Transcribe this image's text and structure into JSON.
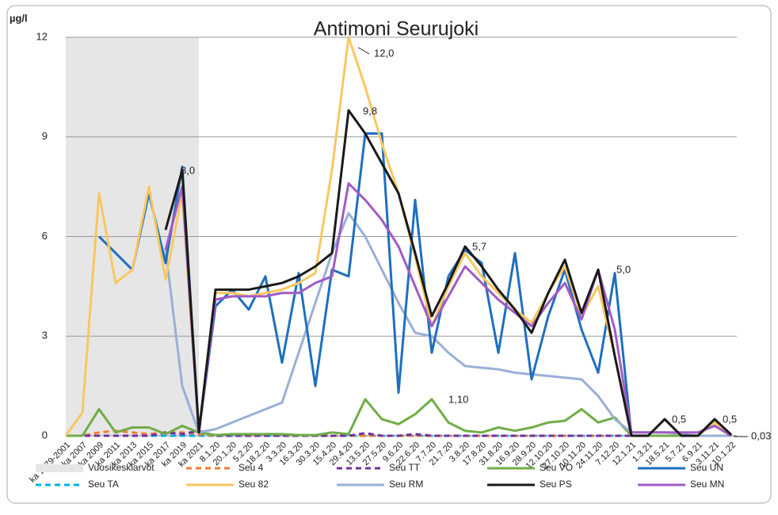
{
  "chart_data": {
    "type": "line",
    "title": "Antimoni Seurujoki",
    "y_label": "µg/l",
    "ylim": [
      0,
      12
    ],
    "yticks": [
      0,
      3,
      6,
      9,
      12
    ],
    "grid": true,
    "categories": [
      "ka 1979-2001",
      "ka 2007",
      "ka 2009",
      "ka 2011",
      "ka 2013",
      "ka 2015",
      "ka 2017",
      "ka 2019",
      "ka 2021",
      "8.1.20",
      "20.1.20",
      "5.2.20",
      "18.2.20",
      "3.3.20",
      "16.3.20",
      "30.3.20",
      "15.4.20",
      "29.4.20",
      "13.5.20",
      "27.5.20",
      "9.6.20",
      "22.6.20",
      "7.7.20",
      "21.7.20",
      "3.8.20",
      "17.8.20",
      "31.8.20",
      "16.9.20",
      "28.9.20",
      "12.10.20",
      "27.10.20",
      "10.11.20",
      "24.11.20",
      "7.12.20",
      "12.1.21",
      "1.3.21",
      "18.5.21",
      "5.7.21",
      "6.9.21",
      "3.11.21",
      "10.1.22"
    ],
    "series": [
      {
        "name": "Vuosikeskiarvot",
        "color": "#e6e6e6",
        "style": "area",
        "values": [
          12,
          12,
          12,
          12,
          12,
          12,
          12,
          12,
          12,
          null,
          null,
          null,
          null,
          null,
          null,
          null,
          null,
          null,
          null,
          null,
          null,
          null,
          null,
          null,
          null,
          null,
          null,
          null,
          null,
          null,
          null,
          null,
          null,
          null,
          null,
          null,
          null,
          null,
          null,
          null,
          null
        ]
      },
      {
        "name": "Seu 4",
        "color": "#ed7d31",
        "style": "dashed",
        "values": [
          0,
          0,
          0.1,
          0.15,
          0.1,
          0.05,
          0.1,
          0.1,
          0.05,
          0,
          0,
          0,
          0,
          0,
          0,
          0,
          0,
          0,
          0,
          0,
          0,
          0,
          0,
          0,
          0,
          0,
          0,
          0,
          0,
          0,
          0,
          0,
          0,
          0,
          0,
          0,
          0,
          0,
          0,
          0,
          0
        ]
      },
      {
        "name": "Seu TT",
        "color": "#7030a0",
        "style": "dashed",
        "values": [
          0,
          0,
          0,
          0,
          0,
          0,
          0.1,
          0.05,
          0.15,
          0,
          0,
          0,
          0,
          0,
          0,
          0,
          0,
          0,
          0.08,
          0,
          0,
          0.05,
          0,
          0,
          0,
          0,
          0,
          0,
          0,
          0,
          0,
          0,
          0,
          0,
          0,
          0,
          0,
          0,
          0,
          0,
          0
        ]
      },
      {
        "name": "Seu VO",
        "color": "#70ad47",
        "style": "solid",
        "values": [
          0,
          0,
          0.8,
          0.1,
          0.25,
          0.25,
          0.05,
          0.3,
          0.1,
          0.02,
          0.05,
          0.05,
          0.05,
          0.05,
          0.02,
          0.02,
          0.1,
          0.05,
          1.1,
          0.5,
          0.35,
          0.65,
          1.1,
          0.4,
          0.15,
          0.1,
          0.25,
          0.15,
          0.25,
          0.4,
          0.45,
          0.8,
          0.4,
          0.55,
          0,
          0,
          0,
          0,
          0,
          0,
          0
        ]
      },
      {
        "name": "Seu UN",
        "color": "#1f6fbf",
        "style": "solid",
        "values": [
          null,
          null,
          6.0,
          5.5,
          5,
          7.3,
          5.2,
          8.1,
          0.1,
          3.9,
          4.4,
          3.8,
          4.8,
          2.2,
          4.9,
          1.5,
          5.0,
          4.8,
          9.1,
          9.1,
          1.3,
          7.1,
          2.5,
          4.8,
          5.6,
          5.2,
          2.5,
          5.5,
          1.7,
          3.6,
          5,
          3.2,
          1.9,
          4.9,
          0,
          0,
          0.5,
          0,
          0,
          0.5,
          0
        ]
      },
      {
        "name": "Seu TA",
        "color": "#00b0f0",
        "style": "dashed",
        "values": [
          0,
          0,
          0,
          0,
          0,
          0,
          0,
          0,
          0,
          0,
          0,
          0,
          0,
          0,
          0,
          0,
          0,
          0,
          0,
          0,
          0,
          0,
          0,
          0,
          0,
          0,
          0,
          0,
          0,
          0,
          0,
          0,
          0,
          0,
          0,
          0,
          0,
          0,
          0,
          0,
          0
        ]
      },
      {
        "name": "Seu 82",
        "color": "#f9c760",
        "style": "solid",
        "values": [
          0,
          0.7,
          7.3,
          4.6,
          5,
          7.5,
          4.7,
          7.3,
          0.1,
          4.3,
          4.3,
          4.2,
          4.3,
          4.4,
          4.6,
          4.9,
          8,
          12,
          10.5,
          8.8,
          7.3,
          5.4,
          3.3,
          4.5,
          5.5,
          4.8,
          4.3,
          3.8,
          3.4,
          4.3,
          5.1,
          3.6,
          4.5,
          2.4,
          0,
          0,
          0.5,
          0,
          0,
          0.4,
          0
        ]
      },
      {
        "name": "Seu RM",
        "color": "#9aafd6",
        "style": "solid",
        "values": [
          null,
          null,
          null,
          null,
          null,
          null,
          5.6,
          1.5,
          0.1,
          0.2,
          0.4,
          0.6,
          0.8,
          1.0,
          2.5,
          4.0,
          5.5,
          6.7,
          6.0,
          5.0,
          4.0,
          3.1,
          3.0,
          2.5,
          2.1,
          2.05,
          2.0,
          1.9,
          1.85,
          1.8,
          1.75,
          1.7,
          1.2,
          0.5,
          0.1,
          0.1,
          0.1,
          0.05,
          0,
          0,
          0
        ]
      },
      {
        "name": "Seu PS",
        "color": "#1a1a1a",
        "style": "solid",
        "values": [
          null,
          null,
          null,
          null,
          null,
          null,
          6.2,
          8.0,
          0.1,
          4.4,
          4.4,
          4.4,
          4.5,
          4.6,
          4.8,
          5.1,
          5.5,
          9.8,
          9.1,
          8.2,
          7.3,
          5.5,
          3.6,
          4.6,
          5.7,
          5.1,
          4.4,
          3.8,
          3.1,
          4.3,
          5.3,
          3.7,
          5.0,
          2.4,
          0,
          0,
          0.5,
          0,
          0,
          0.5,
          0.03
        ]
      },
      {
        "name": "Seu MN",
        "color": "#a05cc4",
        "style": "solid",
        "values": [
          null,
          null,
          null,
          null,
          null,
          null,
          5.6,
          7.5,
          0.1,
          4.1,
          4.2,
          4.2,
          4.2,
          4.3,
          4.3,
          4.6,
          4.8,
          7.6,
          7.1,
          6.5,
          5.7,
          4.5,
          3.3,
          4.2,
          5.1,
          4.6,
          4.1,
          3.7,
          3.3,
          4.0,
          4.6,
          3.5,
          5.0,
          3.2,
          0.1,
          0.1,
          0.1,
          0.1,
          0.1,
          0.3,
          0
        ]
      }
    ],
    "annotations": [
      "8,0",
      "12,0",
      "9,8",
      "5,7",
      "5,0",
      "1,10",
      "0,5",
      "0,5",
      "0,03"
    ]
  }
}
